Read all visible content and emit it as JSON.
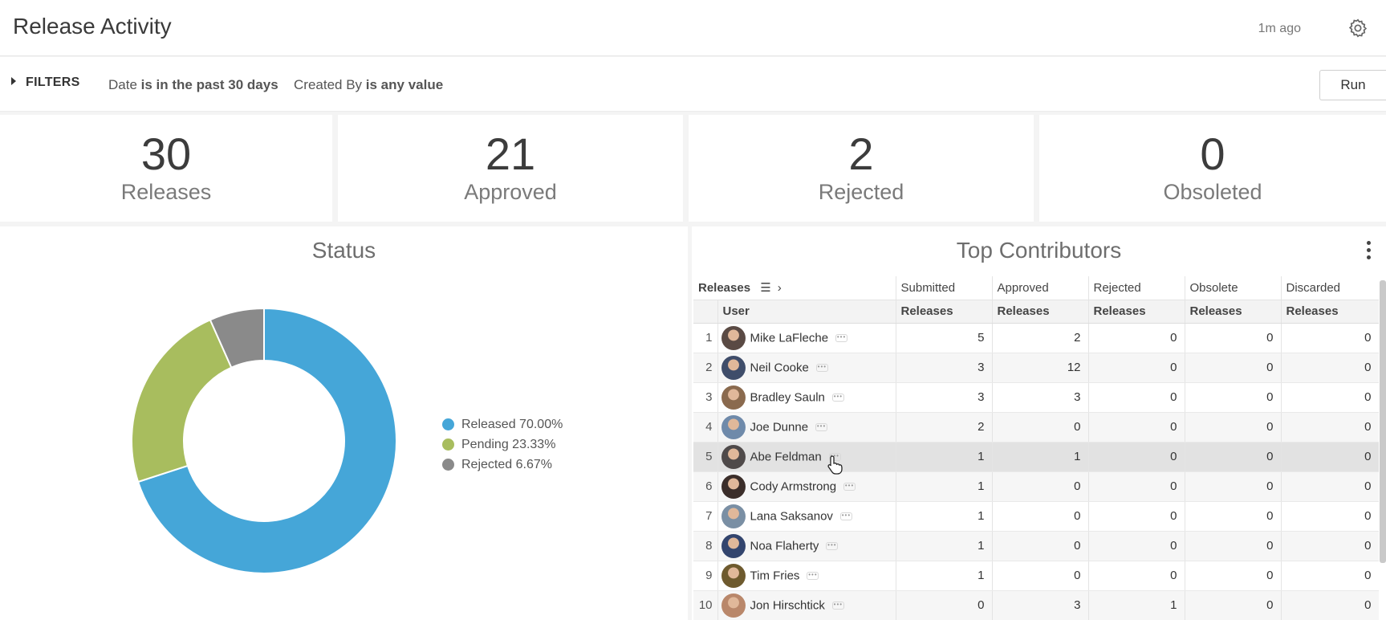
{
  "header": {
    "title": "Release Activity",
    "updated": "1m ago",
    "settings_icon": "gear-icon"
  },
  "filters": {
    "toggle_label": "FILTERS",
    "items": [
      {
        "field": "Date",
        "condition": "is in the past 30 days"
      },
      {
        "field": "Created By",
        "condition": "is any value"
      }
    ],
    "run_label": "Run"
  },
  "kpis": [
    {
      "value": "30",
      "label": "Releases"
    },
    {
      "value": "21",
      "label": "Approved"
    },
    {
      "value": "2",
      "label": "Rejected"
    },
    {
      "value": "0",
      "label": "Obsoleted"
    }
  ],
  "status_panel": {
    "title": "Status"
  },
  "chart_data": {
    "type": "pie",
    "variant": "donut",
    "title": "Status",
    "legend_position": "right",
    "slices": [
      {
        "label": "Released",
        "percent": 70.0,
        "legend_text": "Released 70.00%",
        "color": "#45a6d8"
      },
      {
        "label": "Pending",
        "percent": 23.33,
        "legend_text": "Pending 23.33%",
        "color": "#a8bd5e"
      },
      {
        "label": "Rejected",
        "percent": 6.67,
        "legend_text": "Rejected 6.67%",
        "color": "#8a8a8a"
      }
    ]
  },
  "contributors": {
    "title": "Top Contributors",
    "menu_icon": "kebab-menu-icon",
    "pivot_label": "Releases",
    "pivot_icons": [
      "pivot-toggle-icon",
      "chevron-right-icon"
    ],
    "group_headers": [
      "Submitted",
      "Approved",
      "Rejected",
      "Obsolete",
      "Discarded"
    ],
    "user_header": "User",
    "sub_headers": [
      "Releases",
      "Releases",
      "Releases",
      "Releases",
      "Releases"
    ],
    "rows": [
      {
        "idx": "1",
        "user": "Mike LaFleche",
        "avatar_color": "#5a4a44",
        "values": [
          "5",
          "2",
          "0",
          "0",
          "0"
        ]
      },
      {
        "idx": "2",
        "user": "Neil Cooke",
        "avatar_color": "#3f4d6a",
        "values": [
          "3",
          "12",
          "0",
          "0",
          "0"
        ]
      },
      {
        "idx": "3",
        "user": "Bradley Sauln",
        "avatar_color": "#8a6a4e",
        "values": [
          "3",
          "3",
          "0",
          "0",
          "0"
        ]
      },
      {
        "idx": "4",
        "user": "Joe Dunne",
        "avatar_color": "#6f8aaa",
        "values": [
          "2",
          "0",
          "0",
          "0",
          "0"
        ]
      },
      {
        "idx": "5",
        "user": "Abe Feldman",
        "avatar_color": "#4f4a4a",
        "values": [
          "1",
          "1",
          "0",
          "0",
          "0"
        ]
      },
      {
        "idx": "6",
        "user": "Cody Armstrong",
        "avatar_color": "#3b2e2a",
        "values": [
          "1",
          "0",
          "0",
          "0",
          "0"
        ]
      },
      {
        "idx": "7",
        "user": "Lana Saksanov",
        "avatar_color": "#7a8fa4",
        "values": [
          "1",
          "0",
          "0",
          "0",
          "0"
        ]
      },
      {
        "idx": "8",
        "user": "Noa Flaherty",
        "avatar_color": "#33456e",
        "values": [
          "1",
          "0",
          "0",
          "0",
          "0"
        ]
      },
      {
        "idx": "9",
        "user": "Tim Fries",
        "avatar_color": "#6e5a2e",
        "values": [
          "1",
          "0",
          "0",
          "0",
          "0"
        ]
      },
      {
        "idx": "10",
        "user": "Jon Hirschtick",
        "avatar_color": "#b9876a",
        "values": [
          "0",
          "3",
          "1",
          "0",
          "0"
        ]
      }
    ],
    "selected_row": 4
  }
}
